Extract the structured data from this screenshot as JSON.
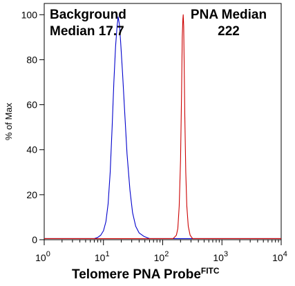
{
  "chart_data": {
    "type": "line",
    "xscale": "log",
    "xlim": [
      1,
      10000
    ],
    "ylim": [
      0,
      105
    ],
    "xlabel": "Telomere PNA Probe",
    "xlabel_superscript": "FITC",
    "ylabel": "% of Max",
    "grid": false,
    "y_ticks": [
      0,
      20,
      40,
      60,
      80,
      100
    ],
    "x_ticks": [
      {
        "value": 1,
        "base": "10",
        "exp": "0"
      },
      {
        "value": 10,
        "base": "10",
        "exp": "1"
      },
      {
        "value": 100,
        "base": "10",
        "exp": "2"
      },
      {
        "value": 1000,
        "base": "10",
        "exp": "3"
      },
      {
        "value": 10000,
        "base": "10",
        "exp": "4"
      }
    ],
    "annotations": [
      {
        "id": "bg",
        "lines": [
          "Background",
          "Median 17.7"
        ],
        "anchor": "start",
        "color": "#000000"
      },
      {
        "id": "pna",
        "lines": [
          "PNA Median",
          "222"
        ],
        "anchor": "middle",
        "color": "#000000"
      }
    ],
    "series": [
      {
        "color": "#0000cc",
        "x": [
          1,
          7,
          8,
          9,
          10,
          11,
          12,
          13,
          14,
          15,
          16,
          17,
          17.7,
          18.5,
          19.5,
          21,
          23,
          25,
          28,
          31,
          35,
          40,
          48,
          60,
          10000
        ],
        "y": [
          0.5,
          0.5,
          1,
          2,
          4,
          8,
          16,
          30,
          50,
          70,
          86,
          95,
          99,
          96,
          88,
          74,
          55,
          38,
          22,
          12,
          6,
          3,
          1.5,
          0.5,
          0.5
        ]
      },
      {
        "color": "#cc0000",
        "x": [
          1,
          150,
          170,
          180,
          190,
          200,
          208,
          214,
          219,
          222,
          226,
          230,
          236,
          245,
          255,
          270,
          290,
          320,
          10000
        ],
        "y": [
          0.5,
          0.5,
          2,
          5,
          15,
          35,
          65,
          90,
          98,
          100,
          95,
          80,
          55,
          30,
          15,
          6,
          2,
          0.5,
          0.5
        ]
      }
    ]
  }
}
